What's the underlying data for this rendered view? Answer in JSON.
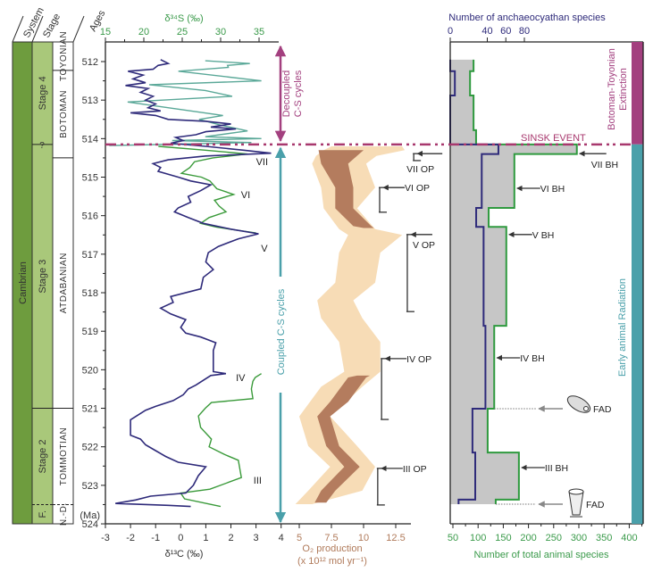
{
  "stratigraphy": {
    "headers": {
      "system": "System",
      "stage": "Stage",
      "ages": "Ages"
    },
    "system": "Cambrian",
    "stages": [
      {
        "label": "Stage 4",
        "top": 511.49,
        "bottom": 514.15
      },
      {
        "label": "Stage 3",
        "top": 514.15,
        "bottom": 521.0
      },
      {
        "label": "Stage 2",
        "top": 521.0,
        "bottom": 523.5
      },
      {
        "label": "F.",
        "top": 523.5,
        "bottom": 524.0
      }
    ],
    "stage_uncertain_mark": "?",
    "regional_stages": [
      {
        "label": "TOYONIAN",
        "top": 511.49,
        "bottom": 512.23
      },
      {
        "label": "BOTOMAN",
        "top": 512.23,
        "bottom": 514.5
      },
      {
        "label": "ATDABANIAN",
        "top": 514.5,
        "bottom": 521.0
      },
      {
        "label": "TOMMOTIAN",
        "top": 521.0,
        "bottom": 523.5
      },
      {
        "label": "N.-D.",
        "top": 523.5,
        "bottom": 524.0
      }
    ]
  },
  "annotations": {
    "decoupled": [
      "Decoupled",
      "C-S cycles"
    ],
    "coupled": "Coupled C-S cycles",
    "sinsk": "SINSK EVENT",
    "extinction": [
      "Botoman-Toyonian",
      "Extinction"
    ],
    "radiation": "Early animal Radiation",
    "colors": {
      "purple": "#a3407f",
      "teal": "#4aa0aa",
      "sinsk": "#a8386e"
    }
  },
  "chart_data": {
    "type": "line",
    "age_axis": {
      "label": "Ages",
      "unit": "(Ma)",
      "range": [
        512,
        524
      ],
      "ticks": [
        512,
        513,
        514,
        515,
        516,
        517,
        518,
        519,
        520,
        521,
        522,
        523,
        524
      ]
    },
    "d13C": {
      "label": "δ¹³C (‰)",
      "color": "#2e2a7a",
      "range": [
        -3,
        4
      ],
      "ticks": [
        -3,
        -2,
        -1,
        0,
        1,
        2,
        3,
        4
      ],
      "points": [
        [
          511.95,
          -0.8
        ],
        [
          512.05,
          -0.5
        ],
        [
          512.1,
          -0.9
        ],
        [
          512.2,
          -1.1
        ],
        [
          512.25,
          -2.1
        ],
        [
          512.35,
          -1.5
        ],
        [
          512.45,
          -1.9
        ],
        [
          512.55,
          -1.4
        ],
        [
          512.62,
          -2.2
        ],
        [
          512.7,
          -1.3
        ],
        [
          512.8,
          -1.6
        ],
        [
          512.9,
          -1.1
        ],
        [
          513.0,
          -1.4
        ],
        [
          513.1,
          -1.0
        ],
        [
          513.2,
          -1.3
        ],
        [
          513.28,
          -0.8
        ],
        [
          513.33,
          -2.0
        ],
        [
          513.4,
          -1.0
        ],
        [
          513.5,
          -0.5
        ],
        [
          513.55,
          1.0
        ],
        [
          513.62,
          2.0
        ],
        [
          513.7,
          1.2
        ],
        [
          513.75,
          2.2
        ],
        [
          513.82,
          1.0
        ],
        [
          513.9,
          0.6
        ],
        [
          513.97,
          -0.2
        ],
        [
          514.05,
          0.1
        ],
        [
          514.12,
          -0.4
        ],
        [
          514.2,
          1.0
        ],
        [
          514.3,
          2.5
        ],
        [
          514.38,
          3.6
        ],
        [
          514.45,
          1.0
        ],
        [
          514.55,
          -0.5
        ],
        [
          514.65,
          -1.1
        ],
        [
          514.75,
          -0.8
        ],
        [
          514.85,
          -0.9
        ],
        [
          515.0,
          -0.1
        ],
        [
          515.1,
          0.4
        ],
        [
          515.2,
          1.2
        ],
        [
          515.35,
          0.8
        ],
        [
          515.5,
          0.3
        ],
        [
          515.65,
          0.4
        ],
        [
          515.8,
          -0.1
        ],
        [
          515.9,
          -0.25
        ],
        [
          516.05,
          0.3
        ],
        [
          516.2,
          0.9
        ],
        [
          516.35,
          2.0
        ],
        [
          516.47,
          3.1
        ],
        [
          516.6,
          2.3
        ],
        [
          516.8,
          1.5
        ],
        [
          516.96,
          1.1
        ],
        [
          517.2,
          1.0
        ],
        [
          517.4,
          1.3
        ],
        [
          517.6,
          0.9
        ],
        [
          517.9,
          0.8
        ],
        [
          518.1,
          -0.4
        ],
        [
          518.25,
          -0.3
        ],
        [
          518.4,
          -0.8
        ],
        [
          518.55,
          -0.4
        ],
        [
          518.7,
          0.2
        ],
        [
          518.9,
          0.0
        ],
        [
          519.05,
          0.2
        ],
        [
          519.15,
          0.8
        ],
        [
          519.3,
          1.4
        ],
        [
          519.5,
          1.3
        ],
        [
          519.8,
          1.3
        ],
        [
          520.05,
          1.3
        ],
        [
          520.1,
          1.8
        ],
        [
          520.15,
          1.2
        ],
        [
          520.4,
          0.6
        ],
        [
          520.5,
          0.3
        ],
        [
          520.65,
          0.1
        ],
        [
          520.8,
          -0.3
        ],
        [
          520.95,
          -1.0
        ],
        [
          521.05,
          -1.4
        ],
        [
          521.3,
          -2.0
        ],
        [
          521.7,
          -2.0
        ],
        [
          521.8,
          -1.6
        ],
        [
          521.95,
          -1.4
        ],
        [
          522.1,
          -1.0
        ],
        [
          522.25,
          -0.6
        ],
        [
          522.4,
          -0.1
        ],
        [
          522.52,
          1.0
        ],
        [
          522.75,
          0.7
        ],
        [
          523.0,
          0.5
        ],
        [
          523.2,
          0.2
        ],
        [
          523.28,
          -1.2
        ],
        [
          523.38,
          -1.8
        ],
        [
          523.47,
          -2.6
        ],
        [
          523.52,
          -0.5
        ],
        [
          523.55,
          0.4
        ]
      ],
      "cycles": [
        {
          "label": "VII",
          "age": 514.6,
          "value": 3.0
        },
        {
          "label": "VI",
          "age": 515.45,
          "value": 2.4
        },
        {
          "label": "V",
          "age": 516.84,
          "value": 3.2
        },
        {
          "label": "IV",
          "age": 520.2,
          "value": 2.2
        },
        {
          "label": "III",
          "age": 522.86,
          "value": 2.9
        }
      ]
    },
    "d34S": {
      "label": "δ³⁴S (‰)",
      "color": "#3a9a3a",
      "upper_color": "#5aa898",
      "range": [
        15,
        35
      ],
      "ticks": [
        15,
        20,
        25,
        30,
        35
      ],
      "segments": [
        [
          [
            511.98,
            28.0
          ],
          [
            512.05,
            33.8
          ],
          [
            512.1,
            30.9
          ],
          [
            512.15,
            31.0
          ],
          [
            512.25,
            24.5
          ],
          [
            512.5,
            35.3
          ],
          [
            512.6,
            20.7
          ],
          [
            512.75,
            28.0
          ],
          [
            512.9,
            31.5
          ],
          [
            513.05,
            17.9
          ],
          [
            513.15,
            21.4
          ],
          [
            513.4,
            30.3
          ],
          [
            513.5,
            27.2
          ],
          [
            513.65,
            30.0
          ],
          [
            513.8,
            33.5
          ],
          [
            513.95,
            28.0
          ],
          [
            514.0,
            35.3
          ],
          [
            514.05,
            23.7
          ],
          [
            514.1,
            34.0
          ],
          [
            514.18,
            15.5
          ]
        ],
        [
          [
            514.2,
            21.9
          ],
          [
            514.3,
            28.0
          ],
          [
            514.4,
            33.5
          ],
          [
            514.5,
            29.0
          ],
          [
            514.6,
            26.6
          ],
          [
            514.75,
            26.0
          ],
          [
            514.9,
            24.9
          ],
          [
            515.0,
            27.5
          ],
          [
            515.1,
            28.6
          ],
          [
            515.3,
            29.5
          ],
          [
            515.45,
            31.7
          ],
          [
            515.6,
            29.2
          ],
          [
            515.75,
            29.8
          ],
          [
            515.9,
            30.7
          ],
          [
            516.05,
            28.5
          ],
          [
            516.2,
            27.4
          ],
          [
            516.3,
            29.5
          ],
          [
            516.45,
            34.6
          ]
        ],
        [
          [
            520.1,
            35.3
          ],
          [
            520.2,
            34.5
          ],
          [
            520.3,
            34.2
          ],
          [
            520.5,
            34.0
          ],
          [
            520.75,
            34.2
          ],
          [
            520.85,
            28.8
          ],
          [
            521.0,
            28.0
          ],
          [
            521.2,
            27.1
          ],
          [
            521.5,
            27.4
          ],
          [
            521.8,
            28.8
          ],
          [
            522.0,
            28.5
          ],
          [
            522.2,
            30.5
          ],
          [
            522.35,
            32.3
          ],
          [
            522.8,
            32.7
          ],
          [
            523.1,
            28.6
          ],
          [
            523.2,
            24.8
          ],
          [
            523.35,
            25.3
          ],
          [
            523.55,
            30.0
          ]
        ]
      ]
    },
    "o2": {
      "label": "O₂ production",
      "unit": "(x 10¹² mol yr⁻¹)",
      "ticks": [
        "5",
        "7.5",
        "10",
        "12.5"
      ],
      "tick_values": [
        5,
        7.5,
        10,
        12.5
      ],
      "envelope_color": "#f7dcb6",
      "core_color": "#b47c5e",
      "envelope": [
        [
          514.2,
          7.5,
          13.0
        ],
        [
          514.3,
          6.9,
          13.2
        ],
        [
          514.45,
          6.3,
          11.0
        ],
        [
          514.65,
          6.0,
          10.2
        ],
        [
          515.27,
          6.7,
          10.9
        ],
        [
          515.81,
          6.9,
          9.5
        ],
        [
          516.35,
          8.1,
          10.9
        ],
        [
          516.5,
          8.8,
          13.0
        ],
        [
          516.96,
          8.1,
          11.3
        ],
        [
          517.74,
          7.8,
          10.9
        ],
        [
          518.2,
          6.4,
          9.2
        ],
        [
          518.66,
          6.7,
          9.9
        ],
        [
          519.28,
          8.1,
          11.3
        ],
        [
          520.05,
          8.5,
          11.3
        ],
        [
          520.44,
          6.7,
          9.9
        ],
        [
          521.21,
          5.0,
          7.4
        ],
        [
          521.98,
          5.7,
          9.5
        ],
        [
          522.52,
          7.4,
          10.9
        ],
        [
          523.14,
          5.7,
          9.9
        ],
        [
          523.49,
          4.7,
          6.0
        ]
      ],
      "core": [
        [
          [
            514.3,
            6.5,
            10.0
          ],
          [
            514.65,
            6.7,
            8.8
          ],
          [
            515.27,
            7.8,
            9.2
          ],
          [
            515.81,
            7.8,
            9.2
          ],
          [
            516.27,
            9.2,
            10.6
          ],
          [
            516.32,
            10.0,
            10.8
          ]
        ],
        [
          [
            520.15,
            9.5,
            10.5
          ],
          [
            520.2,
            8.8,
            10.2
          ],
          [
            520.83,
            7.4,
            8.8
          ],
          [
            521.21,
            6.4,
            7.4
          ],
          [
            521.98,
            7.1,
            8.1
          ],
          [
            522.52,
            8.5,
            9.7
          ],
          [
            523.14,
            6.7,
            7.8
          ],
          [
            523.45,
            6.2,
            7.1
          ]
        ]
      ],
      "op_markers": [
        {
          "label": "VII OP",
          "top": 514.39,
          "bottom": 514.57,
          "value": 13.9
        },
        {
          "label": "VI OP",
          "top": 515.27,
          "bottom": 515.91,
          "value": 11.25
        },
        {
          "label": "V OP",
          "top": 516.49,
          "bottom": 518.49,
          "value": 13.4
        },
        {
          "label": "IV OP",
          "top": 519.71,
          "bottom": 521.29,
          "value": 11.4
        },
        {
          "label": "III OP",
          "top": 522.56,
          "bottom": 523.51,
          "value": 11.1
        }
      ]
    },
    "anchaeocyathan": {
      "label": "Number of anchaeocyathan species",
      "color": "#2e2a7a",
      "ticks": [
        0,
        40,
        60,
        80
      ],
      "steps": [
        [
          511.95,
          512.25,
          0
        ],
        [
          512.25,
          512.88,
          5
        ],
        [
          512.88,
          514.15,
          0
        ],
        [
          514.15,
          514.4,
          52
        ],
        [
          514.4,
          515.8,
          34
        ],
        [
          515.8,
          516.29,
          28
        ],
        [
          516.29,
          518.86,
          36
        ],
        [
          518.86,
          521.01,
          38
        ],
        [
          521.01,
          522.15,
          24
        ],
        [
          522.15,
          523.37,
          27
        ],
        [
          523.37,
          523.49,
          9
        ]
      ]
    },
    "total_animal": {
      "label": "Number of total animal species",
      "color": "#2f9a3f",
      "fill": "#c6c6c6",
      "ticks": [
        50,
        100,
        150,
        200,
        250,
        300,
        350,
        400
      ],
      "steps": [
        [
          511.95,
          512.25,
          91
        ],
        [
          512.25,
          512.88,
          84
        ],
        [
          512.88,
          513.78,
          91
        ],
        [
          513.78,
          514.15,
          96
        ],
        [
          514.15,
          514.4,
          296
        ],
        [
          514.4,
          515.8,
          172
        ],
        [
          515.8,
          516.29,
          121
        ],
        [
          516.29,
          518.86,
          156
        ],
        [
          518.86,
          521.01,
          132
        ],
        [
          521.01,
          522.15,
          119
        ],
        [
          522.15,
          523.37,
          181
        ],
        [
          523.37,
          523.49,
          135
        ]
      ],
      "bh_markers": [
        {
          "label": "VII BH",
          "age": 514.39,
          "value": 296
        },
        {
          "label": "VI BH",
          "age": 515.29,
          "value": 172
        },
        {
          "label": "V BH",
          "age": 516.49,
          "value": 156
        },
        {
          "label": "IV BH",
          "age": 519.69,
          "value": 132
        },
        {
          "label": "III BH",
          "age": 522.54,
          "value": 181
        }
      ],
      "fad_markers": [
        {
          "label": "FAD",
          "age": 521.01,
          "value": 132,
          "icon": "trilobite-icon"
        },
        {
          "label": "FAD",
          "age": 523.49,
          "value": 135,
          "icon": "archaeocyath-icon"
        }
      ]
    },
    "events": {
      "sinsk_age": 514.15
    }
  }
}
